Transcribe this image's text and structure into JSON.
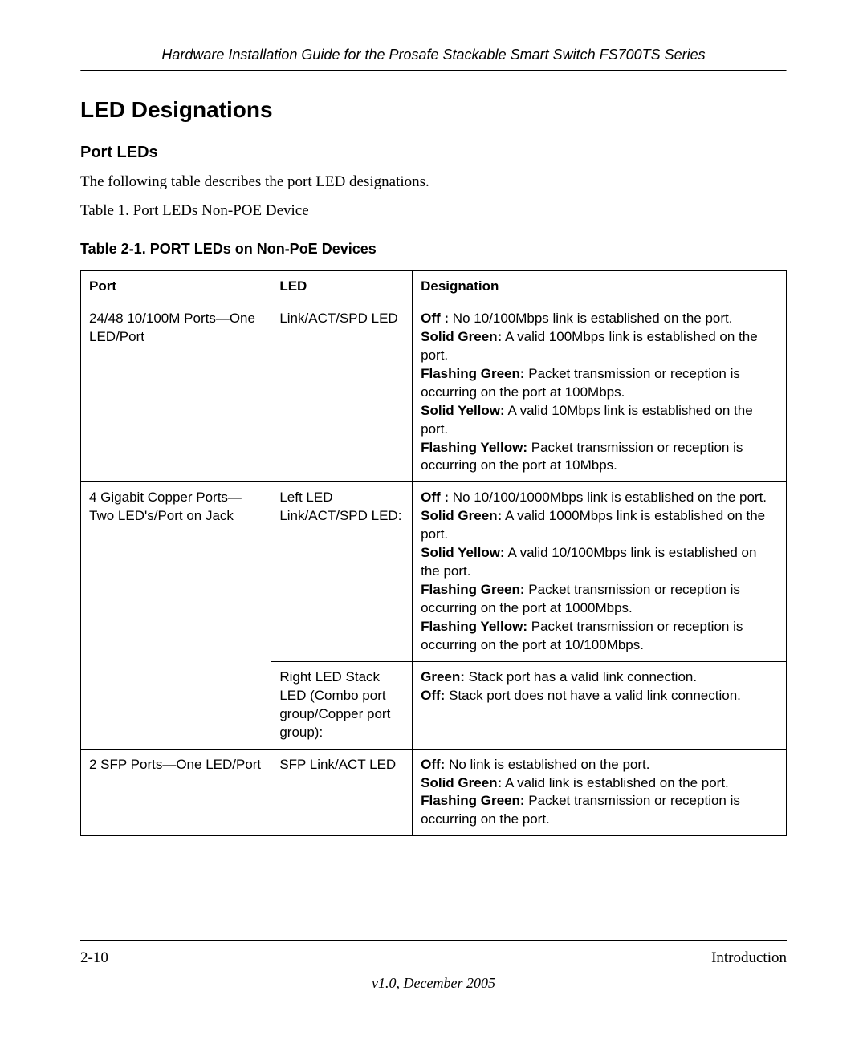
{
  "header": {
    "doc_title": "Hardware Installation Guide for the Prosafe Stackable Smart Switch FS700TS Series"
  },
  "section": {
    "title": "LED Designations",
    "subtitle": "Port LEDs",
    "intro": "The following table describes the port LED designations.",
    "caption": "Table 1. Port LEDs Non-POE Device",
    "table_title": "Table 2-1. PORT LEDs on Non-PoE Devices"
  },
  "table": {
    "headers": {
      "port": "Port",
      "led": "LED",
      "designation": "Designation"
    },
    "rows": [
      {
        "port": "24/48 10/100M Ports—One LED/Port",
        "led": "Link/ACT/SPD LED",
        "designation": {
          "lines": [
            {
              "label": "Off :",
              "text": " No 10/100Mbps link is established on the port."
            },
            {
              "label": "Solid Green:",
              "text": " A valid 100Mbps link is established on the port."
            },
            {
              "label": "Flashing Green:",
              "text": " Packet transmission or reception is occurring on the port at 100Mbps."
            },
            {
              "label": "Solid Yellow:",
              "text": " A valid 10Mbps link is established on the port."
            },
            {
              "label": "Flashing Yellow:",
              "text": " Packet transmission or reception is occurring on the port at 10Mbps."
            }
          ]
        }
      },
      {
        "port": "4 Gigabit Copper Ports—Two LED's/Port on Jack",
        "port_rowspan": 2,
        "led": "Left LED Link/ACT/SPD LED:",
        "designation": {
          "lines": [
            {
              "label": "Off :",
              "text": " No 10/100/1000Mbps link is established on the port."
            },
            {
              "label": "Solid Green:",
              "text": " A valid 1000Mbps link is established on the port."
            },
            {
              "label": "Solid Yellow:",
              "text": " A valid 10/100Mbps link is established on the port."
            },
            {
              "label": "Flashing Green:",
              "text": " Packet transmission or reception is occurring on the port at 1000Mbps."
            },
            {
              "label": "Flashing Yellow:",
              "text": " Packet transmission or reception is occurring on the port at 10/100Mbps."
            }
          ]
        }
      },
      {
        "led": "Right LED Stack LED (Combo port group/Copper port group):",
        "designation": {
          "lines": [
            {
              "label": "Green:",
              "text": " Stack port has a valid link connection."
            },
            {
              "label": "Off:",
              "text": " Stack port does not have a valid link connection."
            }
          ]
        }
      },
      {
        "port": "2 SFP Ports—One LED/Port",
        "led": "SFP Link/ACT LED",
        "designation": {
          "lines": [
            {
              "label": "Off:",
              "text": " No link is established on the port."
            },
            {
              "label": "Solid Green:",
              "text": " A valid link is established on the port."
            },
            {
              "label": "Flashing Green:",
              "text": " Packet transmission or reception is occurring on the port."
            }
          ]
        }
      }
    ]
  },
  "footer": {
    "page": "2-10",
    "chapter": "Introduction",
    "version": "v1.0, December 2005"
  }
}
